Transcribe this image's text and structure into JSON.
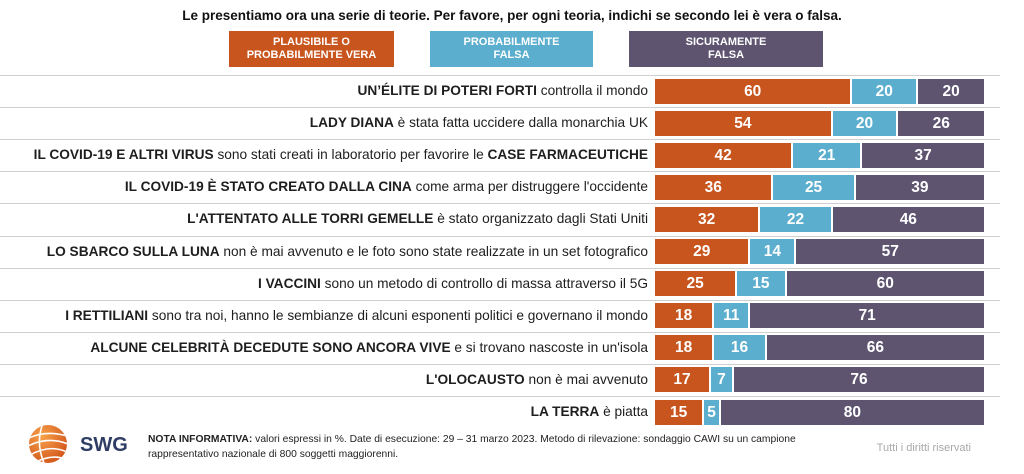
{
  "chart_data": {
    "type": "bar",
    "orientation": "horizontal",
    "stacked": true,
    "title": "Le presentiamo ora una serie di teorie. Per favore, per ogni teoria, indichi se secondo lei è vera o falsa.",
    "legend": "top",
    "grid": true,
    "data_labels": true,
    "xlim": [
      0,
      100
    ],
    "categories": [
      "UN’ÉLITE DI POTERI FORTI controlla il mondo",
      "LADY DIANA è stata fatta uccidere dalla monarchia UK",
      "IL COVID-19 E ALTRI VIRUS sono stati creati in laboratorio per favorire le CASE FARMACEUTICHE",
      "IL COVID-19 È STATO CREATO DALLA CINA come arma per distruggere l'occidente",
      "L'ATTENTATO ALLE TORRI GEMELLE è stato organizzato dagli Stati Uniti",
      "LO SBARCO SULLA LUNA non è mai avvenuto e le foto sono state realizzate in un set fotografico",
      "I VACCINI sono un metodo di controllo di massa attraverso il 5G",
      "I RETTILIANI sono tra noi, hanno le sembianze di alcuni esponenti politici e governano il mondo",
      "ALCUNE CELEBRITÀ DECEDUTE SONO ANCORA VIVE e si trovano nascoste in un'isola",
      "L'OLOCAUSTO non è mai avvenuto",
      "LA TERRA è piatta"
    ],
    "category_emphasis": [
      [
        "UN’ÉLITE DI POTERI FORTI"
      ],
      [
        "LADY DIANA"
      ],
      [
        "IL COVID-19 E ALTRI VIRUS",
        "CASE FARMACEUTICHE"
      ],
      [
        "IL COVID-19 È STATO CREATO DALLA CINA"
      ],
      [
        "L'ATTENTATO ALLE TORRI GEMELLE"
      ],
      [
        "LO SBARCO SULLA LUNA"
      ],
      [
        "I VACCINI"
      ],
      [
        "I RETTILIANI"
      ],
      [
        "ALCUNE CELEBRITÀ DECEDUTE SONO ANCORA VIVE"
      ],
      [
        "L'OLOCAUSTO"
      ],
      [
        "LA TERRA"
      ]
    ],
    "series": [
      {
        "name": "PLAUSIBILE O PROBABILMENTE VERA",
        "color": "#C8551E",
        "values": [
          60,
          54,
          42,
          36,
          32,
          29,
          25,
          18,
          18,
          17,
          15
        ]
      },
      {
        "name": "PROBABILMENTE FALSA",
        "color": "#5CAECE",
        "values": [
          20,
          20,
          21,
          25,
          22,
          14,
          15,
          11,
          16,
          7,
          5
        ]
      },
      {
        "name": "SICURAMENTE FALSA",
        "color": "#5E5470",
        "values": [
          20,
          26,
          37,
          39,
          46,
          57,
          60,
          71,
          66,
          76,
          80
        ]
      }
    ]
  },
  "footer": {
    "logo_text": "SWG",
    "logo_icon": "globe-icon",
    "note_label": "NOTA INFORMATIVA:",
    "note_text": "valori espressi in %. Date di esecuzione: 29 – 31 marzo 2023. Metodo di rilevazione: sondaggio CAWI su un campione rappresentativo nazionale di 800 soggetti maggiorenni.",
    "rights": "Tutti i diritti riservati"
  }
}
